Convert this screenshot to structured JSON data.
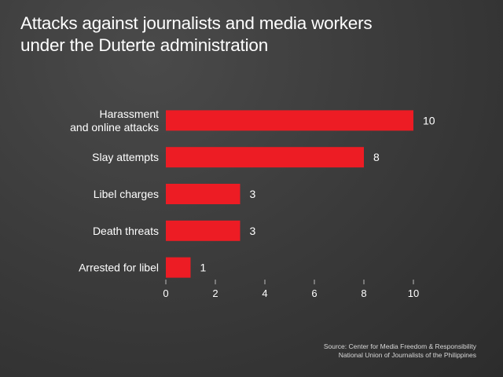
{
  "title_lines": [
    "Attacks against journalists and media workers",
    "under the Duterte administration"
  ],
  "source_lines": [
    "Source: Center for Media Freedom & Responsibility",
    "National Union of Journalists of the Philippines"
  ],
  "colors": {
    "bar": "#ed1c24",
    "text": "#ffffff",
    "tick": "#bbbbbb"
  },
  "chart_data": {
    "type": "bar",
    "orientation": "horizontal",
    "categories": [
      [
        "Harassment",
        "and online attacks"
      ],
      [
        "Slay attempts"
      ],
      [
        "Libel charges"
      ],
      [
        "Death threats"
      ],
      [
        "Arrested for libel"
      ]
    ],
    "values": [
      10,
      8,
      3,
      3,
      1
    ],
    "xlim": [
      0,
      10
    ],
    "xticks": [
      0,
      2,
      4,
      6,
      8,
      10
    ],
    "grid": false,
    "legend": "none"
  }
}
